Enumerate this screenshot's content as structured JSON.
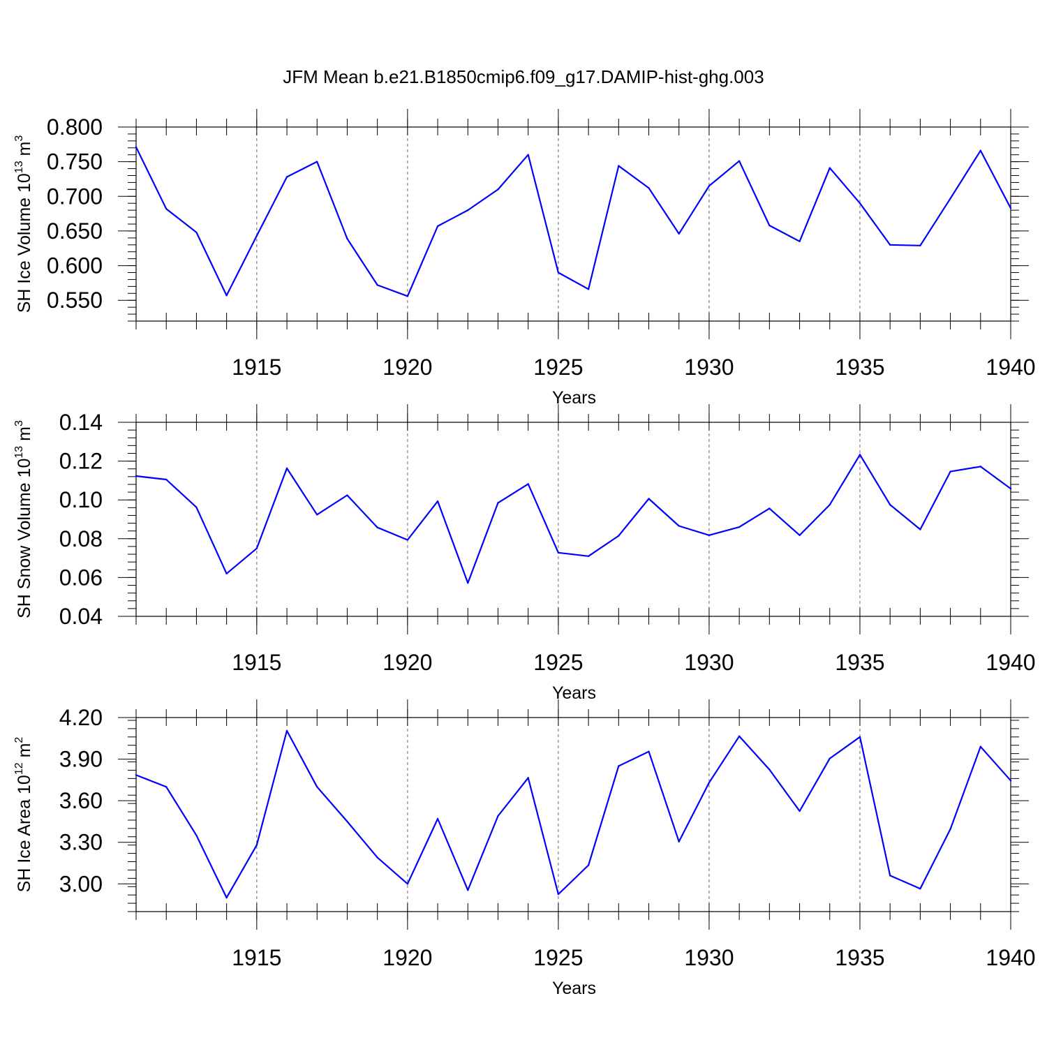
{
  "title": "JFM Mean b.e21.B1850cmip6.f09_g17.DAMIP-hist-ghg.003",
  "colors": {
    "line": "#0000ff",
    "axis": "#000000",
    "grid": "#666666"
  },
  "chart_data": [
    {
      "type": "line",
      "ylabel_main": "SH Ice Volume 10",
      "ylabel_exp": "13",
      "ylabel_unit": " m",
      "ylabel_unit_exp": "3",
      "xlabel": "Years",
      "xlim": [
        1911,
        1940
      ],
      "ylim": [
        0.52,
        0.8
      ],
      "yticks": [
        0.55,
        0.6,
        0.65,
        0.7,
        0.75,
        0.8
      ],
      "ytick_labels": [
        "0.550",
        "0.600",
        "0.650",
        "0.700",
        "0.750",
        "0.800"
      ],
      "xticks": [
        1915,
        1920,
        1925,
        1930,
        1935,
        1940
      ],
      "xtick_labels": [
        "1915",
        "1920",
        "1925",
        "1930",
        "1935",
        "1940"
      ],
      "x": [
        1911,
        1912,
        1913,
        1914,
        1915,
        1916,
        1917,
        1918,
        1919,
        1920,
        1921,
        1922,
        1923,
        1924,
        1925,
        1926,
        1927,
        1928,
        1929,
        1930,
        1931,
        1932,
        1933,
        1934,
        1935,
        1936,
        1937,
        1938,
        1939,
        1940
      ],
      "values": [
        0.771,
        0.682,
        0.648,
        0.557,
        0.643,
        0.728,
        0.75,
        0.639,
        0.572,
        0.556,
        0.657,
        0.68,
        0.71,
        0.76,
        0.59,
        0.566,
        0.744,
        0.712,
        0.646,
        0.715,
        0.751,
        0.658,
        0.635,
        0.741,
        0.69,
        0.63,
        0.629,
        0.697,
        0.766,
        0.683
      ]
    },
    {
      "type": "line",
      "ylabel_main": "SH Snow Volume 10",
      "ylabel_exp": "13",
      "ylabel_unit": " m",
      "ylabel_unit_exp": "3",
      "xlabel": "Years",
      "xlim": [
        1911,
        1940
      ],
      "ylim": [
        0.04,
        0.14
      ],
      "yticks": [
        0.04,
        0.06,
        0.08,
        0.1,
        0.12,
        0.14
      ],
      "ytick_labels": [
        "0.04",
        "0.06",
        "0.08",
        "0.10",
        "0.12",
        "0.14"
      ],
      "xticks": [
        1915,
        1920,
        1925,
        1930,
        1935,
        1940
      ],
      "xtick_labels": [
        "1915",
        "1920",
        "1925",
        "1930",
        "1935",
        "1940"
      ],
      "x": [
        1911,
        1912,
        1913,
        1914,
        1915,
        1916,
        1917,
        1918,
        1919,
        1920,
        1921,
        1922,
        1923,
        1924,
        1925,
        1926,
        1927,
        1928,
        1929,
        1930,
        1931,
        1932,
        1933,
        1934,
        1935,
        1936,
        1937,
        1938,
        1939,
        1940
      ],
      "values": [
        0.1123,
        0.1105,
        0.0962,
        0.062,
        0.075,
        0.1163,
        0.0924,
        0.1024,
        0.0858,
        0.0794,
        0.0993,
        0.0572,
        0.0985,
        0.1082,
        0.0728,
        0.071,
        0.0815,
        0.1006,
        0.0866,
        0.0818,
        0.086,
        0.0956,
        0.0818,
        0.0975,
        0.1233,
        0.0975,
        0.0848,
        0.1146,
        0.1172,
        0.1058
      ]
    },
    {
      "type": "line",
      "ylabel_main": "SH Ice Area 10",
      "ylabel_exp": "12",
      "ylabel_unit": " m",
      "ylabel_unit_exp": "2",
      "xlabel": "Years",
      "xlim": [
        1911,
        1940
      ],
      "ylim": [
        2.8,
        4.2
      ],
      "yticks": [
        3.0,
        3.3,
        3.6,
        3.9,
        4.2
      ],
      "ytick_labels": [
        "3.00",
        "3.30",
        "3.60",
        "3.90",
        "4.20"
      ],
      "xticks": [
        1915,
        1920,
        1925,
        1930,
        1935,
        1940
      ],
      "xtick_labels": [
        "1915",
        "1920",
        "1925",
        "1930",
        "1935",
        "1940"
      ],
      "x": [
        1911,
        1912,
        1913,
        1914,
        1915,
        1916,
        1917,
        1918,
        1919,
        1920,
        1921,
        1922,
        1923,
        1924,
        1925,
        1926,
        1927,
        1928,
        1929,
        1930,
        1931,
        1932,
        1933,
        1934,
        1935,
        1936,
        1937,
        1938,
        1939,
        1940
      ],
      "values": [
        3.785,
        3.7,
        3.35,
        2.9,
        3.28,
        4.105,
        3.7,
        3.45,
        3.19,
        3.0,
        3.47,
        2.955,
        3.49,
        3.765,
        2.925,
        3.135,
        3.85,
        3.955,
        3.305,
        3.73,
        4.065,
        3.825,
        3.525,
        3.905,
        4.06,
        3.06,
        2.965,
        3.395,
        3.99,
        3.745
      ]
    }
  ]
}
